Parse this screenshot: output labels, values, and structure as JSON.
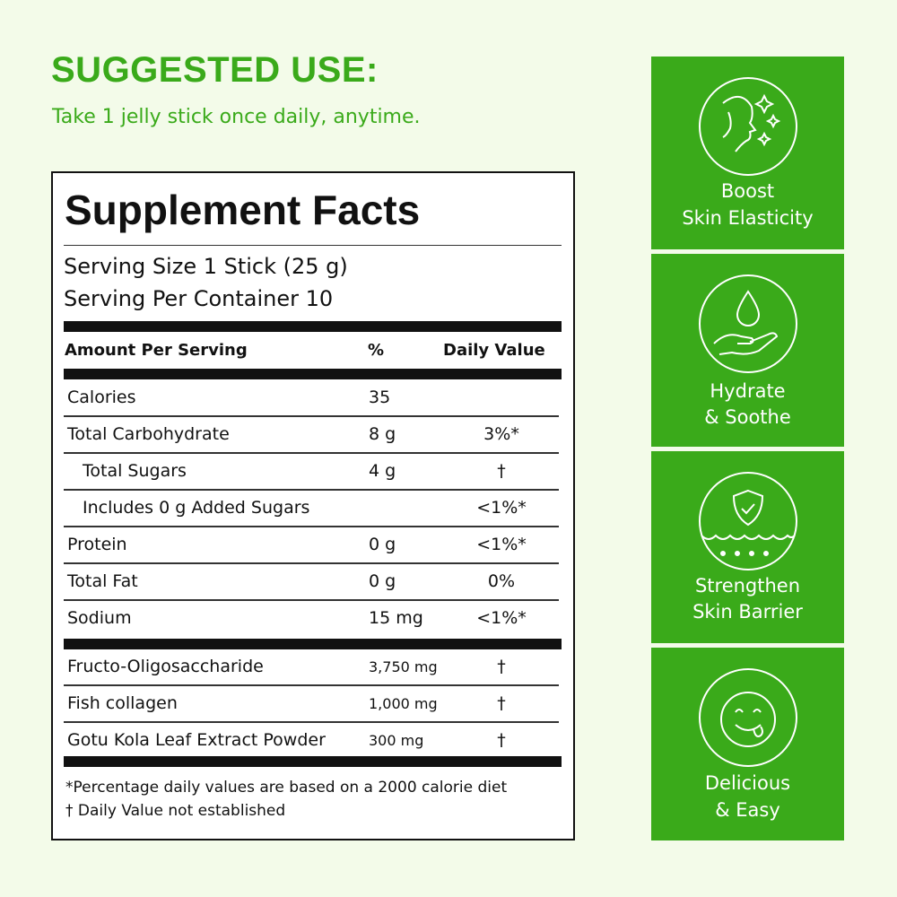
{
  "header": {
    "title": "SUGGESTED USE:",
    "subtitle": "Take 1 jelly stick once daily, anytime."
  },
  "facts": {
    "title": "Supplement Facts",
    "serving_size": "Serving Size 1 Stick (25 g)",
    "servings_per_container": "Serving Per Container 10",
    "columns": [
      "Amount Per Serving",
      "%",
      "Daily Value"
    ],
    "rows": [
      [
        "Calories",
        "35",
        null
      ],
      [
        "Total Carbohydrate",
        "8 g",
        "3%*"
      ],
      [
        "Total Sugars",
        "4 g",
        "†"
      ],
      [
        "Includes 0 g Added Sugars",
        null,
        "<1%*"
      ],
      [
        "Protein",
        "0 g",
        "<1%*"
      ],
      [
        "Total Fat",
        "0 g",
        "0%"
      ],
      [
        "Sodium",
        "15 mg",
        "<1%*"
      ]
    ],
    "ingredients": [
      [
        "Fructo-Oligosaccharide",
        "3,750 mg",
        "†"
      ],
      [
        "Fish collagen",
        "1,000 mg",
        "†"
      ],
      [
        "Gotu Kola Leaf Extract Powder",
        "300 mg",
        "†"
      ]
    ],
    "footnotes": [
      "*Percentage daily values are based on a 2000 calorie diet",
      "† Daily Value not established"
    ]
  },
  "benefits": [
    {
      "lines": [
        "Boost",
        "Skin Elasticity"
      ]
    },
    {
      "lines": [
        "Hydrate",
        "& Soothe"
      ]
    },
    {
      "lines": [
        "Strengthen",
        "Skin Barrier"
      ]
    },
    {
      "lines": [
        "Delicious",
        "& Easy"
      ]
    }
  ]
}
